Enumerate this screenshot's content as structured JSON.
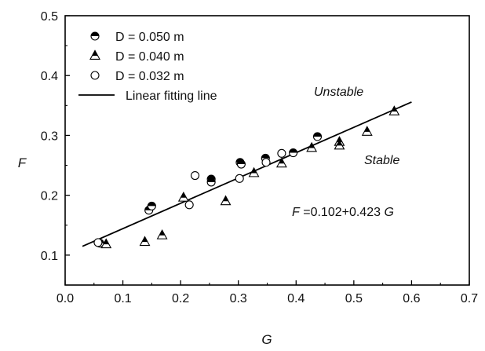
{
  "chart_data": {
    "type": "scatter",
    "xlabel": "G",
    "ylabel": "F",
    "xlim": [
      0.0,
      0.7
    ],
    "ylim": [
      0.05,
      0.5
    ],
    "xticks": [
      0.0,
      0.1,
      0.2,
      0.3,
      0.4,
      0.5,
      0.6,
      0.7
    ],
    "yticks": [
      0.1,
      0.2,
      0.3,
      0.4,
      0.5
    ],
    "x_tick_labels": [
      "0.0",
      "0.1",
      "0.2",
      "0.3",
      "0.4",
      "0.5",
      "0.6",
      "0.7"
    ],
    "y_tick_labels": [
      "0.1",
      "0.2",
      "0.3",
      "0.4",
      "0.5"
    ],
    "grid": false,
    "legend_position": "top-left",
    "series": [
      {
        "name": "D = 0.050 m",
        "marker": "half-filled-circle",
        "points": [
          [
            0.06,
            0.12
          ],
          [
            0.145,
            0.175
          ],
          [
            0.15,
            0.182
          ],
          [
            0.253,
            0.227
          ],
          [
            0.253,
            0.222
          ],
          [
            0.303,
            0.255
          ],
          [
            0.305,
            0.252
          ],
          [
            0.347,
            0.262
          ],
          [
            0.395,
            0.271
          ],
          [
            0.437,
            0.298
          ]
        ]
      },
      {
        "name": "D = 0.040 m",
        "marker": "half-filled-triangle",
        "points": [
          [
            0.071,
            0.118
          ],
          [
            0.138,
            0.122
          ],
          [
            0.168,
            0.133
          ],
          [
            0.205,
            0.196
          ],
          [
            0.278,
            0.19
          ],
          [
            0.327,
            0.237
          ],
          [
            0.375,
            0.253
          ],
          [
            0.427,
            0.279
          ],
          [
            0.475,
            0.289
          ],
          [
            0.475,
            0.283
          ],
          [
            0.523,
            0.306
          ],
          [
            0.57,
            0.34
          ]
        ]
      },
      {
        "name": "D = 0.032 m",
        "marker": "open-circle",
        "points": [
          [
            0.057,
            0.121
          ],
          [
            0.215,
            0.184
          ],
          [
            0.225,
            0.233
          ],
          [
            0.302,
            0.228
          ],
          [
            0.348,
            0.255
          ],
          [
            0.375,
            0.27
          ]
        ]
      },
      {
        "name": "Linear fitting line",
        "type": "line",
        "intercept": 0.102,
        "slope": 0.423,
        "x_range": [
          0.03,
          0.6
        ]
      }
    ],
    "annotations": {
      "unstable": "Unstable",
      "stable": "Stable",
      "equation_var": "F",
      "equation_body": " =0.102+0.423 ",
      "equation_var2": "G"
    }
  }
}
